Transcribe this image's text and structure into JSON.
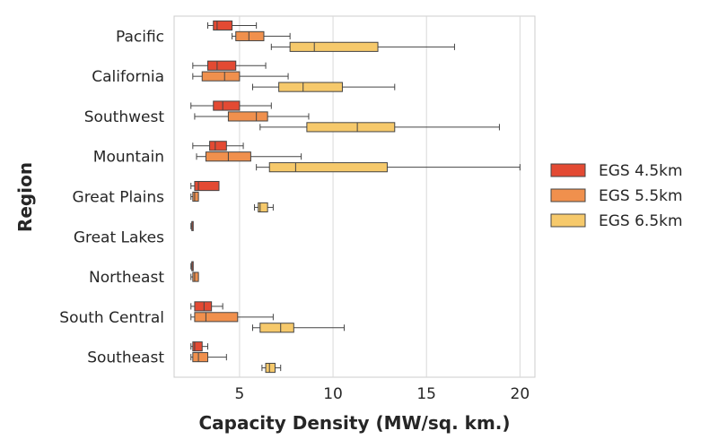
{
  "chart_data": {
    "type": "box",
    "orientation": "horizontal",
    "title": "",
    "xlabel": "Capacity Density (MW/sq. km.)",
    "ylabel": "Region",
    "xlim": [
      1.5,
      20.8
    ],
    "xticks": [
      5,
      10,
      15,
      20
    ],
    "grid": "vertical",
    "legend_position": "right",
    "categories": [
      "Pacific",
      "California",
      "Southwest",
      "Mountain",
      "Great Plains",
      "Great Lakes",
      "Northeast",
      "South Central",
      "Southeast"
    ],
    "series": [
      {
        "name": "EGS 4.5km",
        "color": "#e34a33",
        "boxes": [
          {
            "category": "Pacific",
            "min": 3.3,
            "q1": 3.6,
            "median": 3.8,
            "q3": 4.6,
            "max": 5.9
          },
          {
            "category": "California",
            "min": 2.5,
            "q1": 3.3,
            "median": 3.8,
            "q3": 4.8,
            "max": 6.4
          },
          {
            "category": "Southwest",
            "min": 2.4,
            "q1": 3.6,
            "median": 4.1,
            "q3": 5.0,
            "max": 6.7
          },
          {
            "category": "Mountain",
            "min": 2.5,
            "q1": 3.4,
            "median": 3.7,
            "q3": 4.3,
            "max": 5.2
          },
          {
            "category": "Great Plains",
            "min": 2.4,
            "q1": 2.6,
            "median": 2.8,
            "q3": 3.9,
            "max": 3.9
          },
          {
            "category": "Great Lakes",
            "min": 2.4,
            "q1": 2.45,
            "median": 2.45,
            "q3": 2.5,
            "max": 2.5
          },
          {
            "category": "Northeast",
            "min": 2.4,
            "q1": 2.45,
            "median": 2.45,
            "q3": 2.5,
            "max": 2.5
          },
          {
            "category": "South Central",
            "min": 2.4,
            "q1": 2.6,
            "median": 3.1,
            "q3": 3.5,
            "max": 4.1
          },
          {
            "category": "Southeast",
            "min": 2.4,
            "q1": 2.5,
            "median": 2.6,
            "q3": 3.0,
            "max": 3.3
          }
        ]
      },
      {
        "name": "EGS 5.5km",
        "color": "#f0904d",
        "boxes": [
          {
            "category": "Pacific",
            "min": 4.6,
            "q1": 4.8,
            "median": 5.5,
            "q3": 6.3,
            "max": 7.7
          },
          {
            "category": "California",
            "min": 2.5,
            "q1": 3.0,
            "median": 4.2,
            "q3": 5.0,
            "max": 7.6
          },
          {
            "category": "Southwest",
            "min": 2.6,
            "q1": 4.4,
            "median": 5.9,
            "q3": 6.5,
            "max": 8.7
          },
          {
            "category": "Mountain",
            "min": 2.7,
            "q1": 3.2,
            "median": 4.4,
            "q3": 5.6,
            "max": 8.3
          },
          {
            "category": "Great Plains",
            "min": 2.4,
            "q1": 2.5,
            "median": 2.6,
            "q3": 2.8,
            "max": 2.8
          },
          {
            "category": "Great Lakes",
            "min": null,
            "q1": null,
            "median": null,
            "q3": null,
            "max": null
          },
          {
            "category": "Northeast",
            "min": 2.4,
            "q1": 2.5,
            "median": 2.6,
            "q3": 2.8,
            "max": 2.8
          },
          {
            "category": "South Central",
            "min": 2.4,
            "q1": 2.6,
            "median": 3.2,
            "q3": 4.9,
            "max": 6.8
          },
          {
            "category": "Southeast",
            "min": 2.4,
            "q1": 2.5,
            "median": 2.8,
            "q3": 3.3,
            "max": 4.3
          }
        ]
      },
      {
        "name": "EGS 6.5km",
        "color": "#f6c96b",
        "boxes": [
          {
            "category": "Pacific",
            "min": 6.7,
            "q1": 7.7,
            "median": 9.0,
            "q3": 12.4,
            "max": 16.5
          },
          {
            "category": "California",
            "min": 5.7,
            "q1": 7.1,
            "median": 8.4,
            "q3": 10.5,
            "max": 13.3
          },
          {
            "category": "Southwest",
            "min": 6.1,
            "q1": 8.6,
            "median": 11.3,
            "q3": 13.3,
            "max": 18.9
          },
          {
            "category": "Mountain",
            "min": 5.9,
            "q1": 6.6,
            "median": 8.0,
            "q3": 12.9,
            "max": 20.0
          },
          {
            "category": "Great Plains",
            "min": 5.8,
            "q1": 6.0,
            "median": 6.1,
            "q3": 6.5,
            "max": 6.8
          },
          {
            "category": "Great Lakes",
            "min": null,
            "q1": null,
            "median": null,
            "q3": null,
            "max": null
          },
          {
            "category": "Northeast",
            "min": null,
            "q1": null,
            "median": null,
            "q3": null,
            "max": null
          },
          {
            "category": "South Central",
            "min": 5.7,
            "q1": 6.1,
            "median": 7.2,
            "q3": 7.9,
            "max": 10.6
          },
          {
            "category": "Southeast",
            "min": 6.2,
            "q1": 6.4,
            "median": 6.6,
            "q3": 6.9,
            "max": 7.2
          }
        ]
      }
    ]
  }
}
